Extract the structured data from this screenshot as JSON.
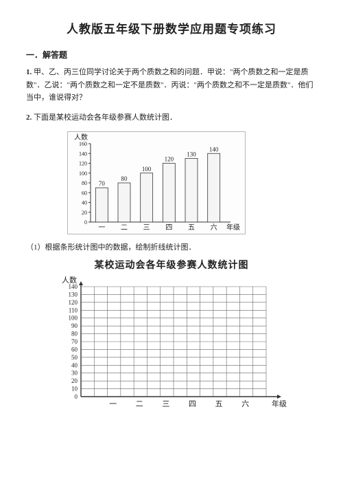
{
  "title": "人教版五年级下册数学应用题专项练习",
  "section": "一．解答题",
  "q1": {
    "num": "1.",
    "text": "甲、乙、丙三位同学讨论关于两个质数之和的问题．甲说：\"两个质数之和一定是质数\"．乙说：\"两个质数之和一定不是质数\"．丙说：\"两个质数之和不一定是质数\"．他们当中，谁说得对？"
  },
  "q2": {
    "num": "2.",
    "text": "下面是某校运动会各年级参赛人数统计图．"
  },
  "subtask": "（1）根据条形统计图中的数据，绘制折线统计图．",
  "chart1": {
    "yLabel": "人数",
    "xLabel": "年级",
    "categories": [
      "一",
      "二",
      "三",
      "四",
      "五",
      "六"
    ],
    "values": [
      70,
      80,
      100,
      120,
      130,
      140
    ],
    "labels": [
      "70",
      "80",
      "100",
      "120",
      "130",
      "140"
    ],
    "yMax": 160,
    "yStep": 20,
    "barFill": "#f5f5f5",
    "barStroke": "#333333",
    "axisColor": "#333333",
    "barWidth": 0.55
  },
  "chart2": {
    "title": "某校运动会各年级参赛人数统计图",
    "yLabel": "人数",
    "xLabel": "年级",
    "categories": [
      "一",
      "二",
      "三",
      "四",
      "五",
      "六"
    ],
    "yMax": 140,
    "yStep": 10,
    "gridColor": "#666666",
    "axisColor": "#333333"
  }
}
